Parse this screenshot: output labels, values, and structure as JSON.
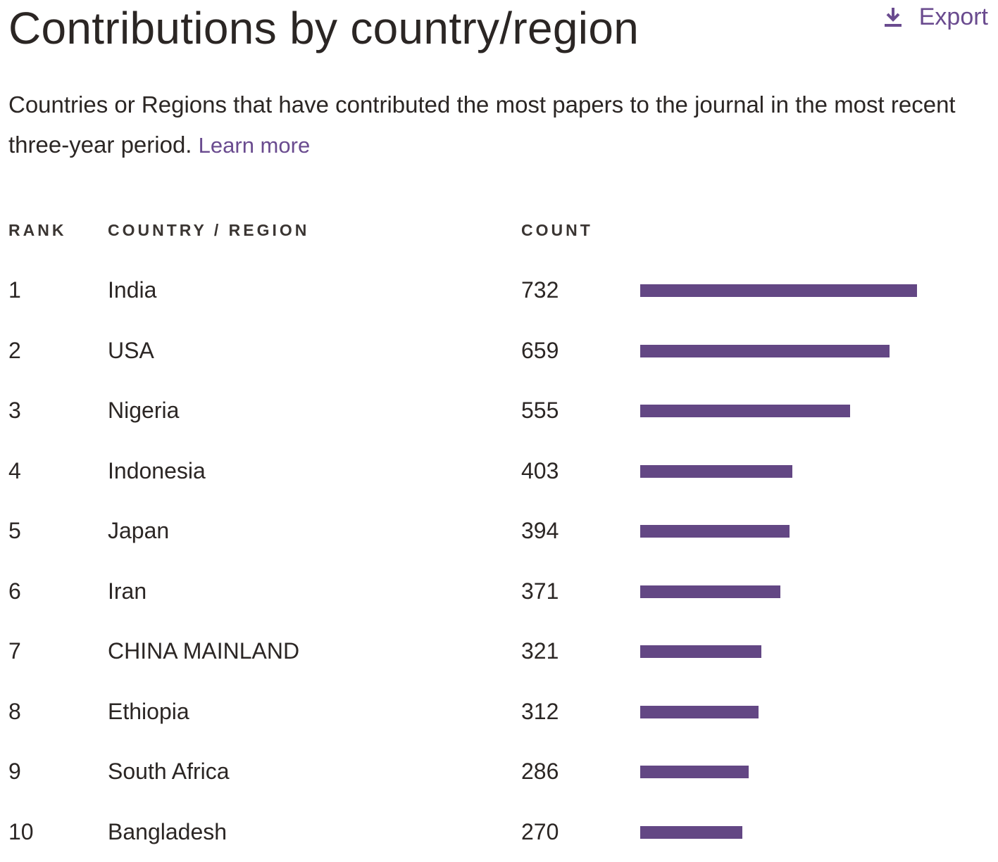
{
  "header": {
    "title": "Contributions by country/region",
    "export_label": "Export"
  },
  "description": {
    "text": "Countries or Regions that have contributed the most papers to the journal in the most recent three-year period.",
    "link_label": "Learn more"
  },
  "table": {
    "columns": [
      "RANK",
      "COUNTRY / REGION",
      "COUNT"
    ]
  },
  "colors": {
    "bar": "#634784",
    "accent": "#6a4b8f"
  },
  "chart_data": {
    "type": "bar",
    "orientation": "horizontal",
    "ranks": [
      "1",
      "2",
      "3",
      "4",
      "5",
      "6",
      "7",
      "8",
      "9",
      "10"
    ],
    "categories": [
      "India",
      "USA",
      "Nigeria",
      "Indonesia",
      "Japan",
      "Iran",
      "CHINA MAINLAND",
      "Ethiopia",
      "South Africa",
      "Bangladesh"
    ],
    "values": [
      732,
      659,
      555,
      403,
      394,
      371,
      321,
      312,
      286,
      270
    ],
    "title": "Contributions by country/region",
    "xlabel": "",
    "ylabel": "",
    "grid": false
  }
}
